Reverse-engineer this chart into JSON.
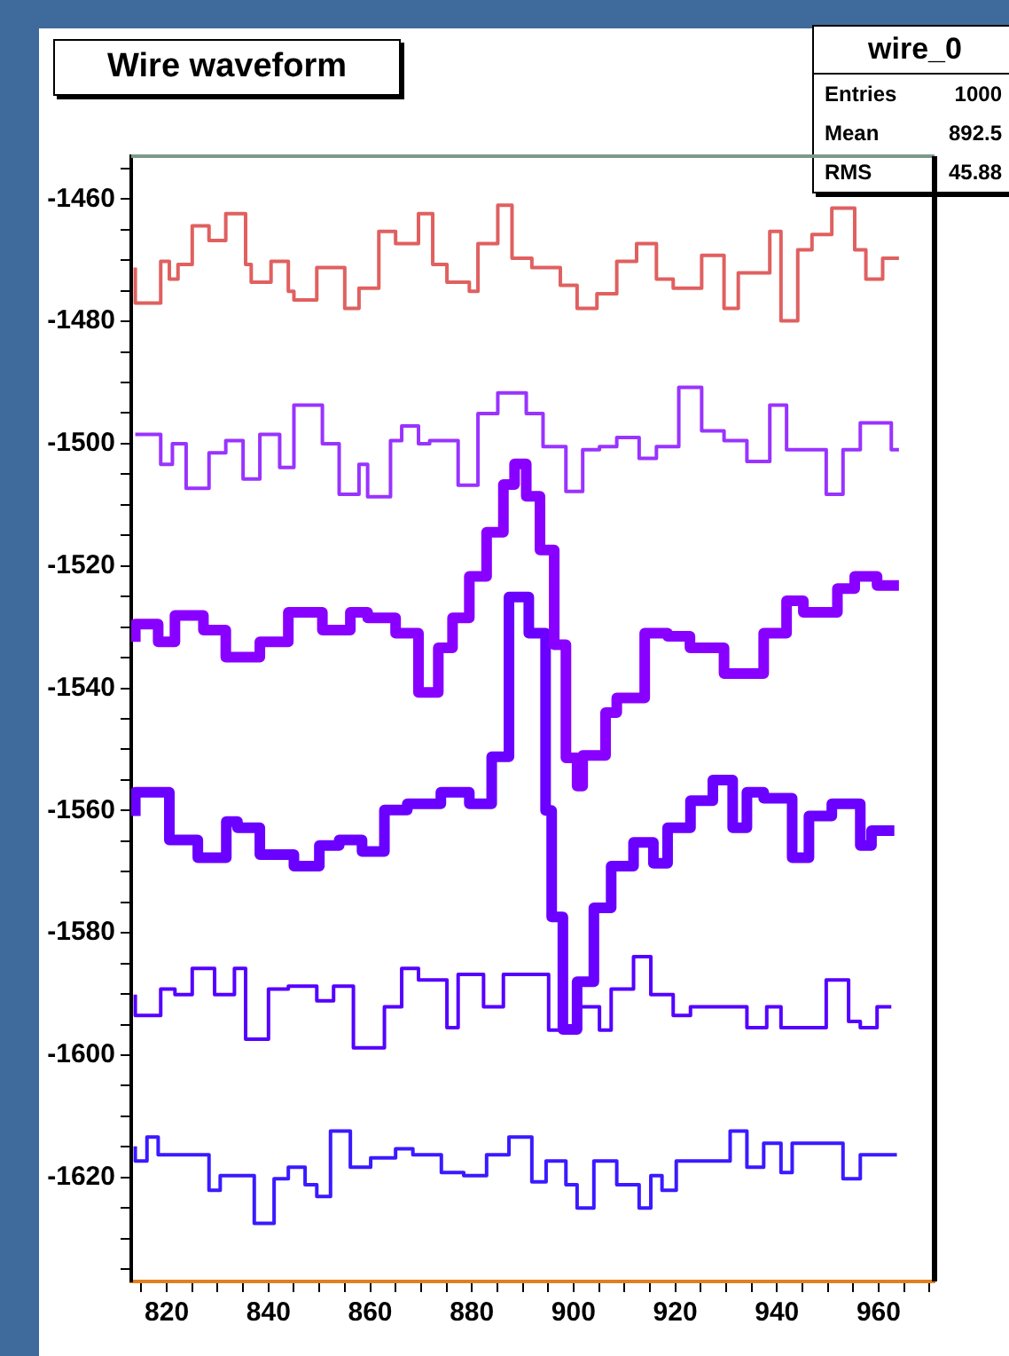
{
  "chart_data": {
    "type": "step",
    "title": "Wire waveform",
    "annotations": [
      "wire_0",
      "Entries 1000",
      "Mean 892.5",
      "RMS 45.88"
    ],
    "xlim": [
      813,
      971
    ],
    "ylim": [
      -1637,
      -1453
    ],
    "xticks": [
      {
        "value": 815,
        "label": null
      },
      820,
      {
        "value": 825,
        "label": null
      },
      {
        "value": 830,
        "label": null
      },
      {
        "value": 835,
        "label": null
      },
      840,
      {
        "value": 845,
        "label": null
      },
      {
        "value": 850,
        "label": null
      },
      {
        "value": 855,
        "label": null
      },
      860,
      {
        "value": 865,
        "label": null
      },
      {
        "value": 870,
        "label": null
      },
      {
        "value": 875,
        "label": null
      },
      880,
      {
        "value": 885,
        "label": null
      },
      {
        "value": 890,
        "label": null
      },
      {
        "value": 895,
        "label": null
      },
      900,
      {
        "value": 905,
        "label": null
      },
      {
        "value": 910,
        "label": null
      },
      {
        "value": 915,
        "label": null
      },
      920,
      {
        "value": 925,
        "label": null
      },
      {
        "value": 930,
        "label": null
      },
      {
        "value": 935,
        "label": null
      },
      940,
      {
        "value": 945,
        "label": null
      },
      {
        "value": 950,
        "label": null
      },
      {
        "value": 955,
        "label": null
      },
      960,
      {
        "value": 965,
        "label": null
      },
      {
        "value": 970,
        "label": null
      }
    ],
    "yticks": [
      {
        "value": -1455,
        "label": null
      },
      -1460,
      {
        "value": -1465,
        "label": null
      },
      {
        "value": -1470,
        "label": null
      },
      {
        "value": -1475,
        "label": null
      },
      -1480,
      {
        "value": -1485,
        "label": null
      },
      {
        "value": -1490,
        "label": null
      },
      {
        "value": -1495,
        "label": null
      },
      -1500,
      {
        "value": -1505,
        "label": null
      },
      {
        "value": -1510,
        "label": null
      },
      {
        "value": -1515,
        "label": null
      },
      -1520,
      {
        "value": -1525,
        "label": null
      },
      {
        "value": -1530,
        "label": null
      },
      {
        "value": -1535,
        "label": null
      },
      -1540,
      {
        "value": -1545,
        "label": null
      },
      {
        "value": -1550,
        "label": null
      },
      {
        "value": -1555,
        "label": null
      },
      -1560,
      {
        "value": -1565,
        "label": null
      },
      {
        "value": -1570,
        "label": null
      },
      {
        "value": -1575,
        "label": null
      },
      -1580,
      {
        "value": -1585,
        "label": null
      },
      {
        "value": -1590,
        "label": null
      },
      {
        "value": -1595,
        "label": null
      },
      -1600,
      {
        "value": -1605,
        "label": null
      },
      {
        "value": -1610,
        "label": null
      },
      {
        "value": -1615,
        "label": null
      },
      -1620,
      {
        "value": -1625,
        "label": null
      },
      {
        "value": -1630,
        "label": null
      },
      {
        "value": -1635,
        "label": null
      }
    ],
    "legend": false,
    "series": [
      {
        "color": "#e06060",
        "x": [
          813.8,
          818.8,
          820.5,
          822.2,
          825,
          828.3,
          831.6,
          835.5,
          836.6,
          840.5,
          843.9,
          845,
          849.5,
          855,
          857.8,
          861.7,
          865,
          869.5,
          872.3,
          875.1,
          879.5,
          881.2,
          885.1,
          887.9,
          891.8,
          897.4,
          900.7,
          904.6,
          908.5,
          912.4,
          916.3,
          919.6,
          925.2,
          929.6,
          932.4,
          938.6,
          940.8,
          944.1,
          946.9,
          950.8,
          955.3,
          957.5,
          960.8,
          964
        ],
        "values": [
          -1471.2,
          -1477,
          -1470.2,
          -1473.1,
          -1470.7,
          -1464.4,
          -1466.8,
          -1462.4,
          -1470.7,
          -1473.6,
          -1470.2,
          -1475.1,
          -1476.5,
          -1471.2,
          -1477.9,
          -1474.6,
          -1465.3,
          -1467.3,
          -1462.4,
          -1470.7,
          -1473.6,
          -1475.1,
          -1467.3,
          -1461,
          -1469.7,
          -1471.2,
          -1474.1,
          -1477.9,
          -1475.5,
          -1470.2,
          -1467.3,
          -1473.1,
          -1474.6,
          -1469.2,
          -1477.9,
          -1472.1,
          -1465.3,
          -1479.9,
          -1468.3,
          -1465.8,
          -1461.5,
          -1468.3,
          -1473.1,
          -1469.7
        ]
      },
      {
        "color": "#9933ff",
        "x": [
          813.8,
          818.8,
          821.1,
          823.8,
          828.3,
          831.6,
          835,
          838.3,
          842.2,
          845,
          850.6,
          853.9,
          857.8,
          859.5,
          864,
          866.2,
          869.5,
          871.7,
          877.3,
          881.2,
          885.1,
          890.7,
          894,
          898.5,
          901.8,
          905.1,
          908.5,
          912.9,
          916.3,
          920.7,
          925.2,
          929.6,
          934.1,
          938.6,
          941.9,
          946.3,
          949.7,
          953,
          956.4,
          962.5,
          964
        ],
        "values": [
          -1498.5,
          -1498.5,
          -1503.4,
          -1500,
          -1507.3,
          -1501.5,
          -1499.5,
          -1505.8,
          -1498.5,
          -1503.9,
          -1493.7,
          -1500,
          -1508.3,
          -1503.4,
          -1508.7,
          -1499.5,
          -1497.1,
          -1500,
          -1499.5,
          -1506.8,
          -1495.1,
          -1491.7,
          -1495.1,
          -1500.5,
          -1507.8,
          -1501,
          -1500.5,
          -1499,
          -1502.4,
          -1500.5,
          -1490.8,
          -1497.9,
          -1499.5,
          -1502.9,
          -1493.7,
          -1501,
          -1501,
          -1508.3,
          -1501,
          -1496.6,
          -1501
        ]
      },
      {
        "color": "#8800ff",
        "x": [
          813.8,
          818.3,
          821.6,
          827.2,
          831.6,
          838.3,
          843.9,
          850.6,
          856.1,
          859.5,
          865,
          869.5,
          873.4,
          876.2,
          879.5,
          882.9,
          886.2,
          888.4,
          890.7,
          893.4,
          896.2,
          898.5,
          900.7,
          901.8,
          906.3,
          908.5,
          914,
          918.5,
          922.9,
          929.6,
          937.4,
          941.9,
          945.2,
          951.9,
          955.3,
          959.7,
          964
        ],
        "values": [
          -1532.4,
          -1529.5,
          -1532.4,
          -1528.1,
          -1530.5,
          -1534.9,
          -1532.4,
          -1527.6,
          -1530.5,
          -1527.6,
          -1528.5,
          -1531,
          -1540.7,
          -1533.4,
          -1528.5,
          -1521.7,
          -1514.5,
          -1506.7,
          -1503.3,
          -1508.6,
          -1517.4,
          -1532.9,
          -1551.4,
          -1556,
          -1551,
          -1544,
          -1541.6,
          -1531,
          -1531.5,
          -1533.4,
          -1537.6,
          -1531,
          -1525.7,
          -1527.6,
          -1523.7,
          -1521.7,
          -1523.2
        ]
      },
      {
        "color": "#6a00ff",
        "x": [
          813.8,
          820.5,
          826.1,
          831.7,
          833.9,
          838.3,
          845,
          850,
          853.9,
          858.4,
          862.8,
          867.3,
          873.9,
          879.5,
          883.9,
          887.3,
          891.2,
          894.5,
          895.7,
          897.9,
          900.7,
          904,
          907.4,
          911.8,
          915.7,
          918.5,
          923,
          927.4,
          931.3,
          934.1,
          937.4,
          943,
          946.3,
          950.8,
          956.4,
          958.6,
          963.1
        ],
        "values": [
          -1560.9,
          -1557,
          -1564.8,
          -1567.7,
          -1561.8,
          -1562.8,
          -1567.2,
          -1569.1,
          -1565.7,
          -1564.8,
          -1566.7,
          -1559.9,
          -1558.9,
          -1557,
          -1558.9,
          -1551.2,
          -1525.1,
          -1531,
          -1560,
          -1577.4,
          -1595.8,
          -1588,
          -1575.9,
          -1569.1,
          -1565.2,
          -1568.6,
          -1562.8,
          -1558.4,
          -1555,
          -1562.8,
          -1557,
          -1558,
          -1567.7,
          -1560.9,
          -1558.9,
          -1565.7,
          -1563.3
        ]
      },
      {
        "color": "#5500ff",
        "x": [
          813.8,
          818.8,
          821.6,
          825,
          829.4,
          833.3,
          835.5,
          840,
          843.9,
          849.5,
          852.8,
          856.7,
          862.8,
          866.2,
          869.5,
          875.1,
          877.3,
          882.3,
          886.2,
          889,
          895.1,
          900.7,
          905.1,
          907.4,
          911.8,
          915.2,
          919.6,
          923,
          928.5,
          934.1,
          938,
          940.8,
          949.7,
          954.1,
          956.4,
          959.7,
          962.5
        ],
        "values": [
          -1590.1,
          -1593.5,
          -1589.2,
          -1590.1,
          -1585.8,
          -1590.1,
          -1585.8,
          -1597.4,
          -1589.2,
          -1588.7,
          -1591.1,
          -1588.7,
          -1598.8,
          -1592.1,
          -1585.8,
          -1587.7,
          -1595.5,
          -1586.8,
          -1592.1,
          -1586.8,
          -1586.8,
          -1595.9,
          -1592.1,
          -1595.9,
          -1589.2,
          -1583.9,
          -1590.1,
          -1593.5,
          -1592.1,
          -1592.1,
          -1595.5,
          -1592.1,
          -1595.5,
          -1587.7,
          -1594.5,
          -1595.5,
          -1592.1
        ]
      },
      {
        "color": "#3a1aff",
        "x": [
          813.8,
          816.1,
          818.3,
          821.6,
          828.3,
          830.5,
          837.2,
          841.1,
          843.9,
          847.2,
          849.5,
          852.2,
          856.1,
          860.1,
          865,
          868.4,
          874,
          878.4,
          882.9,
          887.3,
          891.8,
          894.6,
          898.5,
          900.7,
          904,
          908.5,
          912.9,
          915.2,
          917.4,
          920.2,
          923,
          930.8,
          934.1,
          937.4,
          940.8,
          943,
          953,
          956.4,
          960.8,
          963.6
        ],
        "values": [
          -1614.9,
          -1617.3,
          -1613.4,
          -1616.3,
          -1616.3,
          -1622.1,
          -1619.7,
          -1627.5,
          -1620.2,
          -1618.3,
          -1621.2,
          -1623.1,
          -1612.4,
          -1618.3,
          -1616.8,
          -1615.3,
          -1616.3,
          -1619.2,
          -1619.7,
          -1616.3,
          -1613.4,
          -1620.7,
          -1617.3,
          -1621.2,
          -1625,
          -1617.3,
          -1621.2,
          -1625,
          -1619.7,
          -1622.1,
          -1617.3,
          -1617.3,
          -1612.4,
          -1618.3,
          -1614.4,
          -1619.2,
          -1614.4,
          -1620.2,
          -1616.3,
          -1616.3
        ]
      }
    ]
  }
}
